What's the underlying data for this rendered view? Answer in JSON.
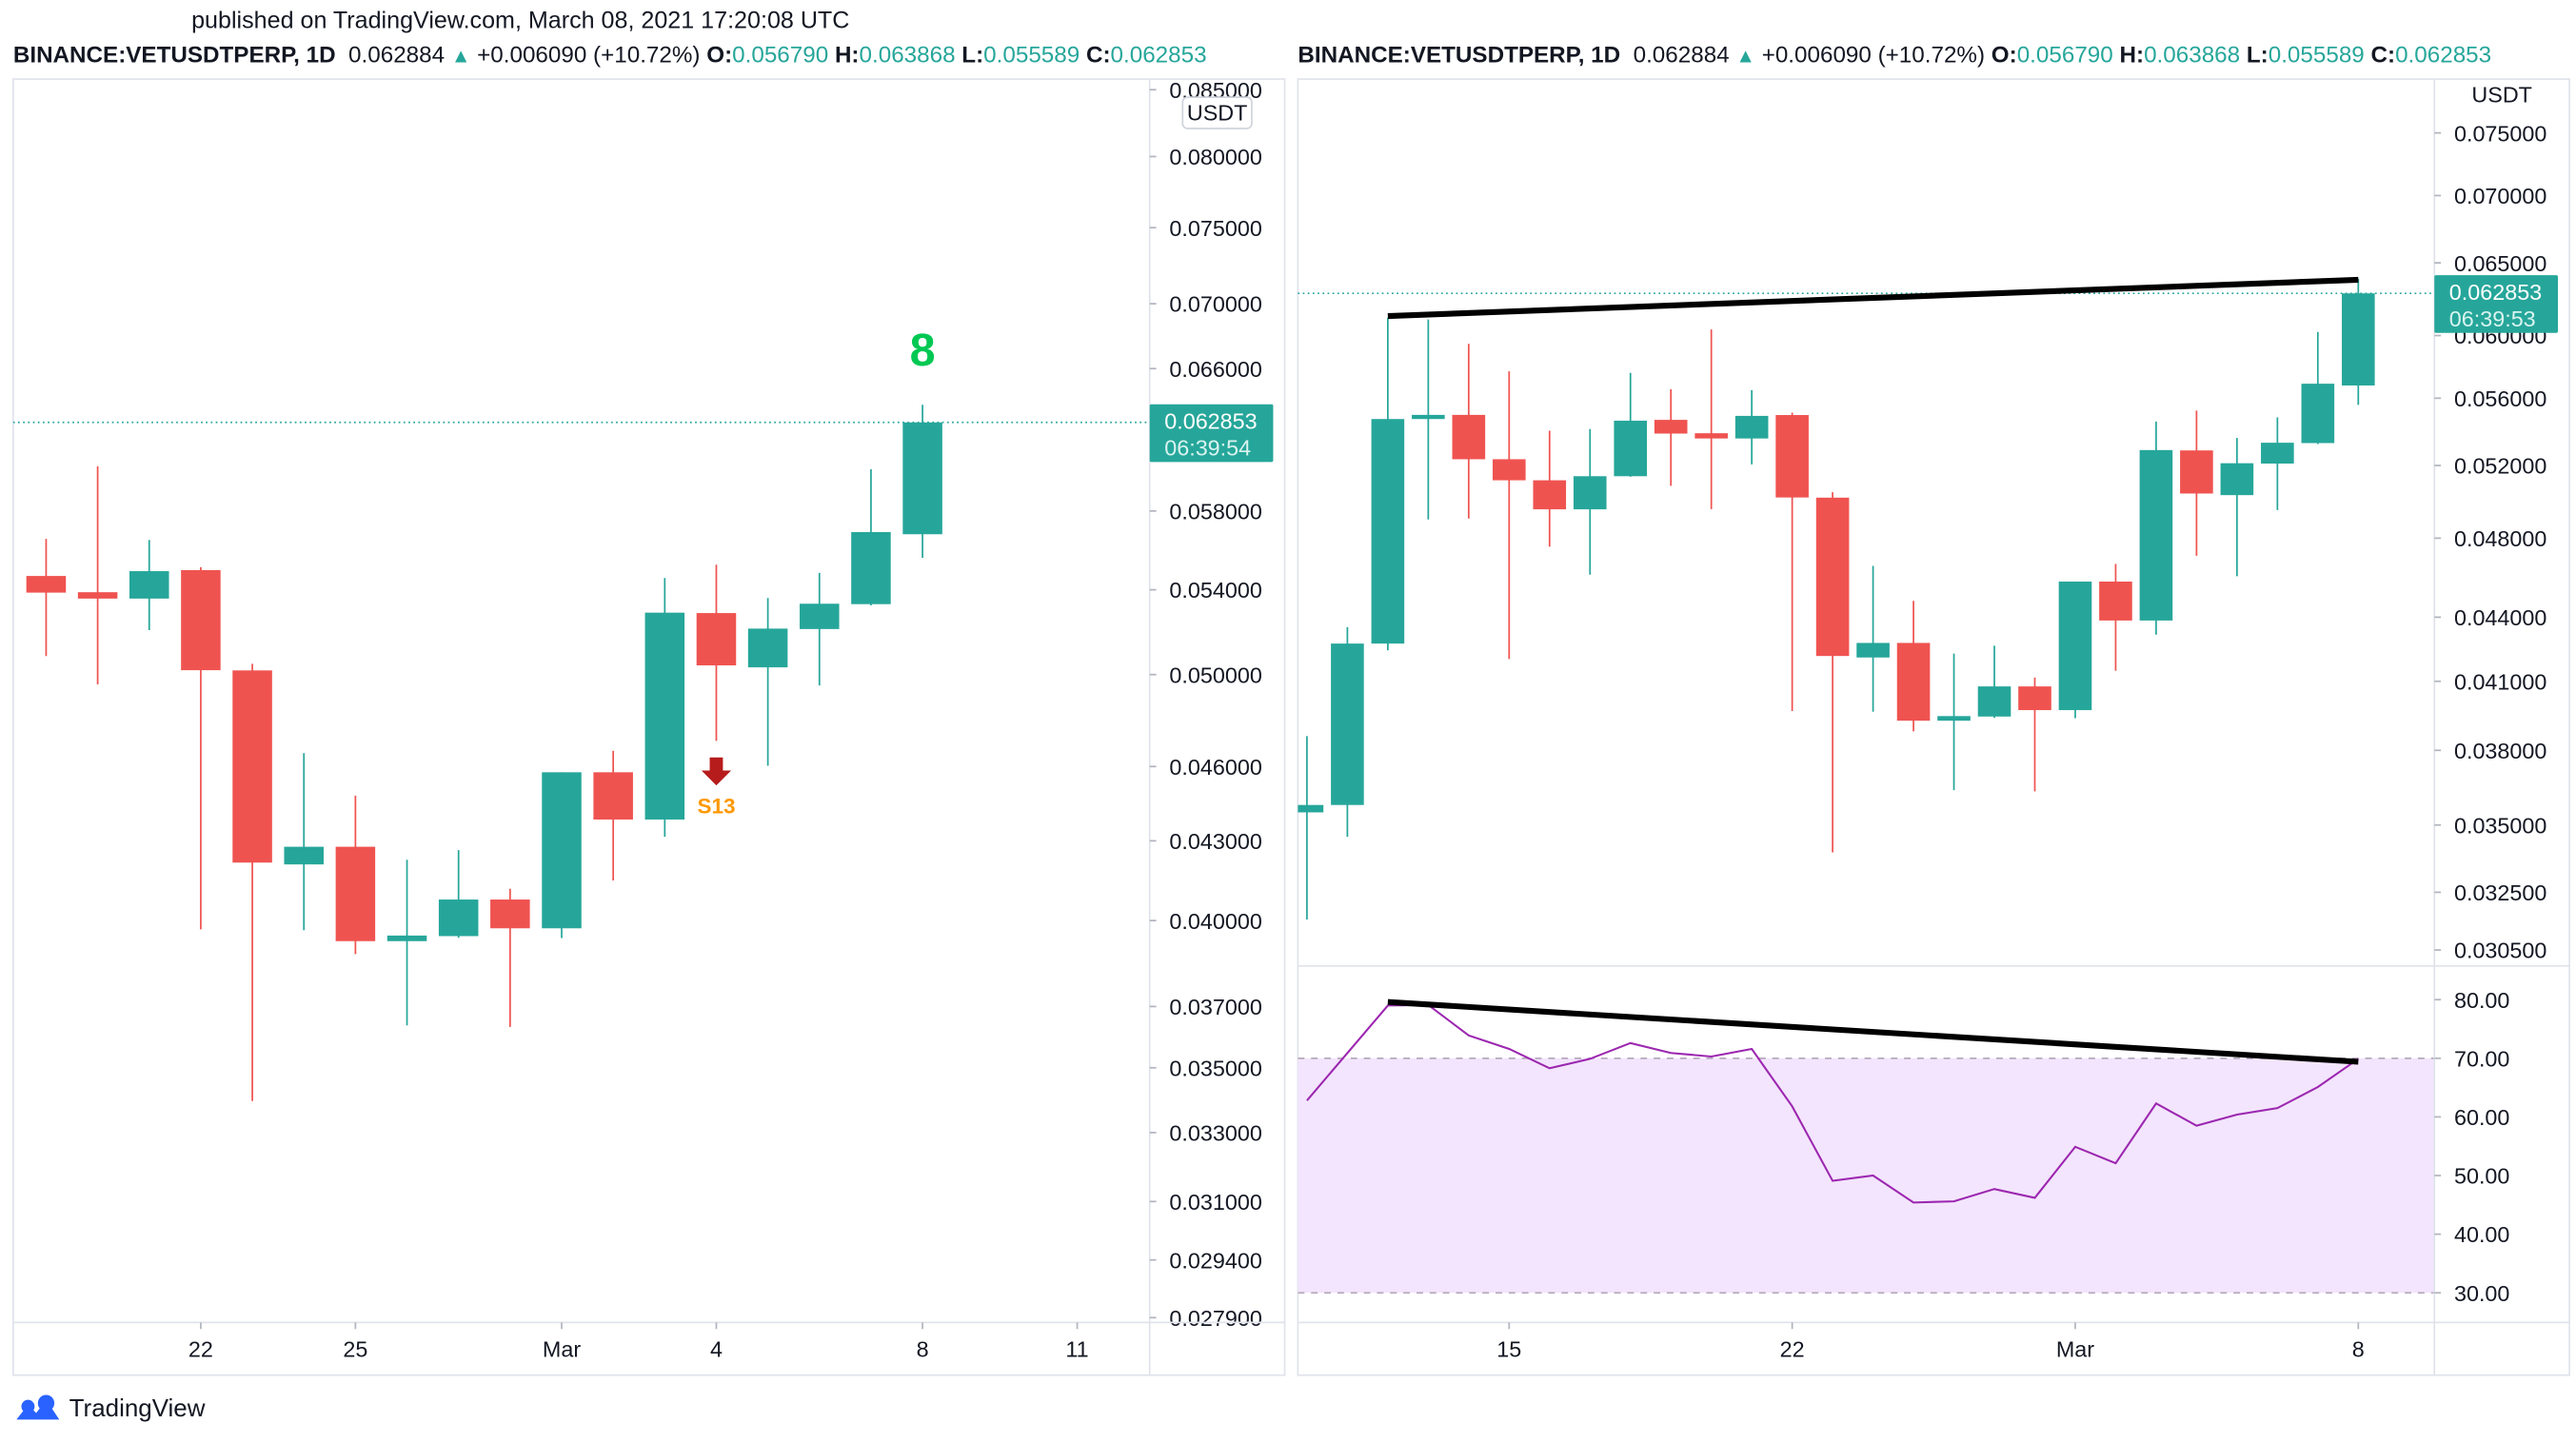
{
  "header": {
    "published": "published on TradingView.com, March 08, 2021 17:20:08 UTC"
  },
  "legend": {
    "symbol": "BINANCE:VETUSDTPERP, 1D",
    "last": "0.062884",
    "direction_icon": "triangle-up",
    "change": "+0.006090 (+10.72%)",
    "o_label": "O:",
    "o": "0.056790",
    "h_label": "H:",
    "h": "0.063868",
    "l_label": "L:",
    "l": "0.055589",
    "c_label": "C:",
    "c": "0.062853"
  },
  "colors": {
    "up": "#26a69a",
    "down": "#ef5350",
    "rsi": "#9c27b0",
    "rsi_band": "#f3e5fd",
    "td_count": "#00c853",
    "sell_arrow": "#b71c1c",
    "s13": "#ff9800",
    "brand": "#2962ff"
  },
  "branding": {
    "logo_text": "TradingView"
  },
  "chart_data": [
    {
      "type": "candlestick",
      "scale": "log",
      "currency": "USDT",
      "last_price": "0.062853",
      "countdown": "06:39:54",
      "y_ticks": [
        "0.085000",
        "0.080000",
        "0.075000",
        "0.070000",
        "0.066000",
        "0.058000",
        "0.054000",
        "0.050000",
        "0.046000",
        "0.043000",
        "0.040000",
        "0.037000",
        "0.035000",
        "0.033000",
        "0.031000",
        "0.029400",
        "0.027900"
      ],
      "x_ticks": [
        {
          "label": "22",
          "date": "2021-02-22"
        },
        {
          "label": "25",
          "date": "2021-02-25"
        },
        {
          "label": "Mar",
          "date": "2021-03-01"
        },
        {
          "label": "4",
          "date": "2021-03-04"
        },
        {
          "label": "8",
          "date": "2021-03-08"
        },
        {
          "label": "11",
          "date": "2021-03-11"
        }
      ],
      "annotations": [
        {
          "type": "td-count",
          "text": "8",
          "date": "2021-03-08"
        },
        {
          "type": "sell-signal",
          "text": "S13",
          "date": "2021-03-04"
        }
      ],
      "candles": [
        {
          "date": "2021-02-19",
          "o": 0.05468,
          "h": 0.05655,
          "l": 0.05085,
          "c": 0.05386
        },
        {
          "date": "2021-02-20",
          "o": 0.05388,
          "h": 0.0604,
          "l": 0.04956,
          "c": 0.05357
        },
        {
          "date": "2021-02-21",
          "o": 0.05357,
          "h": 0.0565,
          "l": 0.05206,
          "c": 0.05492
        },
        {
          "date": "2021-02-22",
          "o": 0.05497,
          "h": 0.05512,
          "l": 0.03968,
          "c": 0.0502
        },
        {
          "date": "2021-02-23",
          "o": 0.05019,
          "h": 0.05049,
          "l": 0.03396,
          "c": 0.04216
        },
        {
          "date": "2021-02-24",
          "o": 0.04209,
          "h": 0.04656,
          "l": 0.03965,
          "c": 0.04277
        },
        {
          "date": "2021-02-25",
          "o": 0.04277,
          "h": 0.0448,
          "l": 0.0388,
          "c": 0.03926
        },
        {
          "date": "2021-02-26",
          "o": 0.03926,
          "h": 0.04227,
          "l": 0.03637,
          "c": 0.03946
        },
        {
          "date": "2021-02-27",
          "o": 0.03944,
          "h": 0.04264,
          "l": 0.03938,
          "c": 0.04077
        },
        {
          "date": "2021-02-28",
          "o": 0.04077,
          "h": 0.04117,
          "l": 0.03632,
          "c": 0.03972
        },
        {
          "date": "2021-03-01",
          "o": 0.03972,
          "h": 0.04576,
          "l": 0.03937,
          "c": 0.04576
        },
        {
          "date": "2021-03-02",
          "o": 0.04576,
          "h": 0.04666,
          "l": 0.04148,
          "c": 0.04384
        },
        {
          "date": "2021-03-03",
          "o": 0.04384,
          "h": 0.05458,
          "l": 0.04316,
          "c": 0.05289
        },
        {
          "date": "2021-03-04",
          "o": 0.05287,
          "h": 0.05524,
          "l": 0.04708,
          "c": 0.05042
        },
        {
          "date": "2021-03-05",
          "o": 0.05033,
          "h": 0.0536,
          "l": 0.04603,
          "c": 0.05213
        },
        {
          "date": "2021-03-06",
          "o": 0.05211,
          "h": 0.05483,
          "l": 0.04951,
          "c": 0.05332
        },
        {
          "date": "2021-03-07",
          "o": 0.0533,
          "h": 0.06024,
          "l": 0.05324,
          "c": 0.0569
        },
        {
          "date": "2021-03-08",
          "o": 0.05679,
          "h": 0.063868,
          "l": 0.055589,
          "c": 0.062853
        }
      ]
    },
    {
      "type": "candlestick",
      "scale": "log",
      "currency": "USDT",
      "last_price": "0.062853",
      "countdown": "06:39:53",
      "y_ticks": [
        "0.075000",
        "0.070000",
        "0.065000",
        "0.060000",
        "0.056000",
        "0.052000",
        "0.048000",
        "0.044000",
        "0.041000",
        "0.038000",
        "0.035000",
        "0.032500",
        "0.030500"
      ],
      "x_ticks": [
        {
          "label": "15",
          "date": "2021-02-15"
        },
        {
          "label": "22",
          "date": "2021-02-22"
        },
        {
          "label": "Mar",
          "date": "2021-03-01"
        },
        {
          "label": "8",
          "date": "2021-03-08"
        }
      ],
      "trendlines": [
        {
          "pane": "price",
          "from": {
            "date": "2021-02-12",
            "value": 0.0613
          },
          "to": {
            "date": "2021-03-08",
            "value": 0.0638
          }
        },
        {
          "pane": "rsi",
          "from": {
            "date": "2021-02-12",
            "value": 79.6
          },
          "to": {
            "date": "2021-03-08",
            "value": 69.4
          }
        }
      ],
      "rsi": {
        "y_ticks": [
          "80.00",
          "70.00",
          "60.00",
          "50.00",
          "40.00",
          "30.00"
        ],
        "levels": [
          70,
          30
        ],
        "values": [
          62.8,
          70.9,
          79.0,
          79.1,
          73.9,
          71.6,
          68.3,
          69.9,
          72.6,
          70.9,
          70.3,
          71.6,
          61.8,
          49.1,
          50.0,
          45.4,
          45.6,
          47.7,
          46.2,
          54.9,
          52.1,
          62.3,
          58.5,
          60.4,
          61.5,
          65.1,
          69.9
        ]
      },
      "candles": [
        {
          "date": "2021-02-10",
          "o": 0.03549,
          "h": 0.0386,
          "l": 0.03154,
          "c": 0.03578
        },
        {
          "date": "2021-02-11",
          "o": 0.03578,
          "h": 0.04352,
          "l": 0.03455,
          "c": 0.04274
        },
        {
          "date": "2021-02-12",
          "o": 0.04274,
          "h": 0.06119,
          "l": 0.04242,
          "c": 0.05473
        },
        {
          "date": "2021-02-13",
          "o": 0.05473,
          "h": 0.06107,
          "l": 0.049,
          "c": 0.05498
        },
        {
          "date": "2021-02-14",
          "o": 0.05498,
          "h": 0.05945,
          "l": 0.04905,
          "c": 0.05236
        },
        {
          "date": "2021-02-15",
          "o": 0.05236,
          "h": 0.05768,
          "l": 0.04202,
          "c": 0.05116
        },
        {
          "date": "2021-02-16",
          "o": 0.05116,
          "h": 0.05403,
          "l": 0.04755,
          "c": 0.04955
        },
        {
          "date": "2021-02-17",
          "o": 0.04955,
          "h": 0.05413,
          "l": 0.04611,
          "c": 0.05139
        },
        {
          "date": "2021-02-18",
          "o": 0.05139,
          "h": 0.05758,
          "l": 0.05136,
          "c": 0.05463
        },
        {
          "date": "2021-02-19",
          "o": 0.05468,
          "h": 0.05655,
          "l": 0.05085,
          "c": 0.05386
        },
        {
          "date": "2021-02-20",
          "o": 0.05388,
          "h": 0.0604,
          "l": 0.04956,
          "c": 0.05357
        },
        {
          "date": "2021-02-21",
          "o": 0.05357,
          "h": 0.0565,
          "l": 0.05206,
          "c": 0.05492
        },
        {
          "date": "2021-02-22",
          "o": 0.05497,
          "h": 0.05512,
          "l": 0.03968,
          "c": 0.0502
        },
        {
          "date": "2021-02-23",
          "o": 0.05019,
          "h": 0.05049,
          "l": 0.03396,
          "c": 0.04216
        },
        {
          "date": "2021-02-24",
          "o": 0.04209,
          "h": 0.04656,
          "l": 0.03965,
          "c": 0.04277
        },
        {
          "date": "2021-02-25",
          "o": 0.04277,
          "h": 0.0448,
          "l": 0.0388,
          "c": 0.03926
        },
        {
          "date": "2021-02-26",
          "o": 0.03926,
          "h": 0.04227,
          "l": 0.03637,
          "c": 0.03946
        },
        {
          "date": "2021-02-27",
          "o": 0.03944,
          "h": 0.04264,
          "l": 0.03938,
          "c": 0.04077
        },
        {
          "date": "2021-02-28",
          "o": 0.04077,
          "h": 0.04117,
          "l": 0.03632,
          "c": 0.03972
        },
        {
          "date": "2021-03-01",
          "o": 0.03972,
          "h": 0.04576,
          "l": 0.03937,
          "c": 0.04576
        },
        {
          "date": "2021-03-02",
          "o": 0.04576,
          "h": 0.04666,
          "l": 0.04148,
          "c": 0.04384
        },
        {
          "date": "2021-03-03",
          "o": 0.04384,
          "h": 0.05458,
          "l": 0.04316,
          "c": 0.05289
        },
        {
          "date": "2021-03-04",
          "o": 0.05287,
          "h": 0.05524,
          "l": 0.04708,
          "c": 0.05042
        },
        {
          "date": "2021-03-05",
          "o": 0.05033,
          "h": 0.0536,
          "l": 0.04603,
          "c": 0.05213
        },
        {
          "date": "2021-03-06",
          "o": 0.05211,
          "h": 0.05483,
          "l": 0.04951,
          "c": 0.05332
        },
        {
          "date": "2021-03-07",
          "o": 0.0533,
          "h": 0.06024,
          "l": 0.05324,
          "c": 0.0569
        },
        {
          "date": "2021-03-08",
          "o": 0.05679,
          "h": 0.063868,
          "l": 0.055589,
          "c": 0.062853
        }
      ]
    }
  ]
}
